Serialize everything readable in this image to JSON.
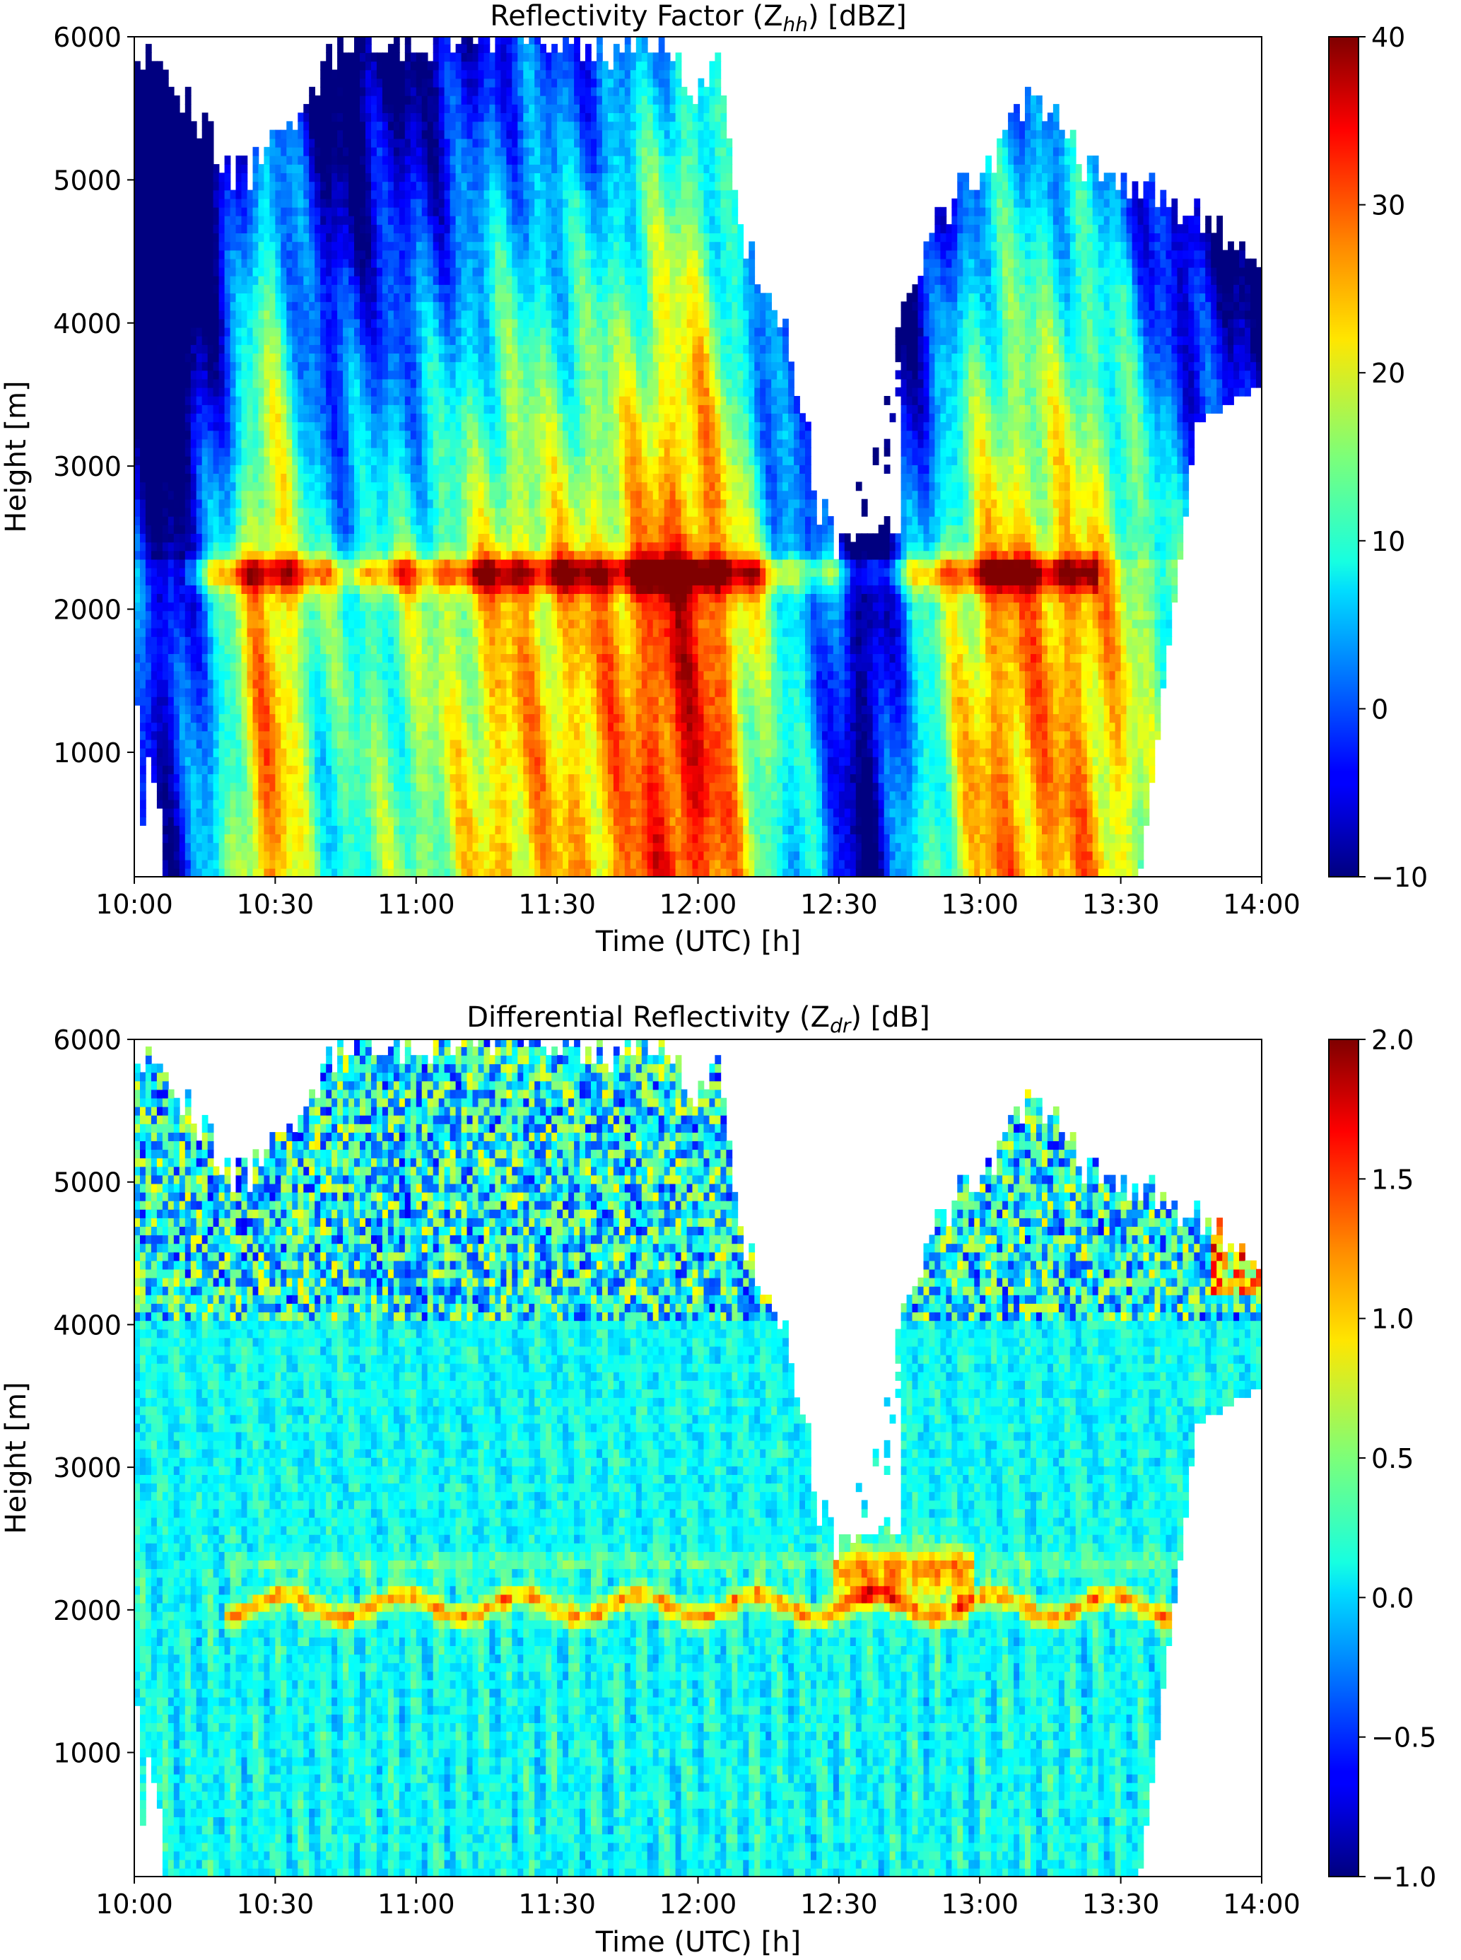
{
  "chart_data": [
    {
      "type": "heatmap",
      "title": "Reflectivity Factor (Z",
      "title_sub": "hh",
      "title_tail": ") [dBZ]",
      "xlabel": "Time (UTC) [h]",
      "ylabel": "Height [m]",
      "xticks": [
        "10:00",
        "10:30",
        "11:00",
        "11:30",
        "12:00",
        "12:30",
        "13:00",
        "13:30",
        "14:00"
      ],
      "xlim_minutes": [
        0,
        240
      ],
      "yticks": [
        1000,
        2000,
        3000,
        4000,
        5000,
        6000
      ],
      "ylim": [
        130,
        6000
      ],
      "colorbar": {
        "min": -10,
        "max": 40,
        "ticks": [
          -10,
          0,
          10,
          20,
          30,
          40
        ],
        "labels": [
          "−10",
          "0",
          "10",
          "20",
          "30",
          "40"
        ]
      },
      "colormap": "jet",
      "melting_layer_height_m": 2250,
      "features": [
        {
          "t_start": 20,
          "t_end": 36,
          "max_dBZ": 35
        },
        {
          "t_start": 90,
          "t_end": 110,
          "max_dBZ": 32
        },
        {
          "t_start": 110,
          "t_end": 140,
          "max_dBZ": 38
        },
        {
          "t_start": 185,
          "t_end": 225,
          "max_dBZ": 33
        }
      ]
    },
    {
      "type": "heatmap",
      "title": "Differential Reflectivity (Z",
      "title_sub": "dr",
      "title_tail": ") [dB]",
      "xlabel": "Time (UTC) [h]",
      "ylabel": "Height [m]",
      "xticks": [
        "10:00",
        "10:30",
        "11:00",
        "11:30",
        "12:00",
        "12:30",
        "13:00",
        "13:30",
        "14:00"
      ],
      "xlim_minutes": [
        0,
        240
      ],
      "yticks": [
        1000,
        2000,
        3000,
        4000,
        5000,
        6000
      ],
      "ylim": [
        130,
        6000
      ],
      "colorbar": {
        "min": -1.0,
        "max": 2.0,
        "ticks": [
          -1.0,
          -0.5,
          0.0,
          0.5,
          1.0,
          1.5,
          2.0
        ],
        "labels": [
          "−1.0",
          "−0.5",
          "0.0",
          "0.5",
          "1.0",
          "1.5",
          "2.0"
        ]
      },
      "colormap": "jet",
      "bright_band_height_m": 2000,
      "features": [
        {
          "t_start": 150,
          "t_end": 175,
          "max_dB": 2.0
        }
      ]
    }
  ]
}
